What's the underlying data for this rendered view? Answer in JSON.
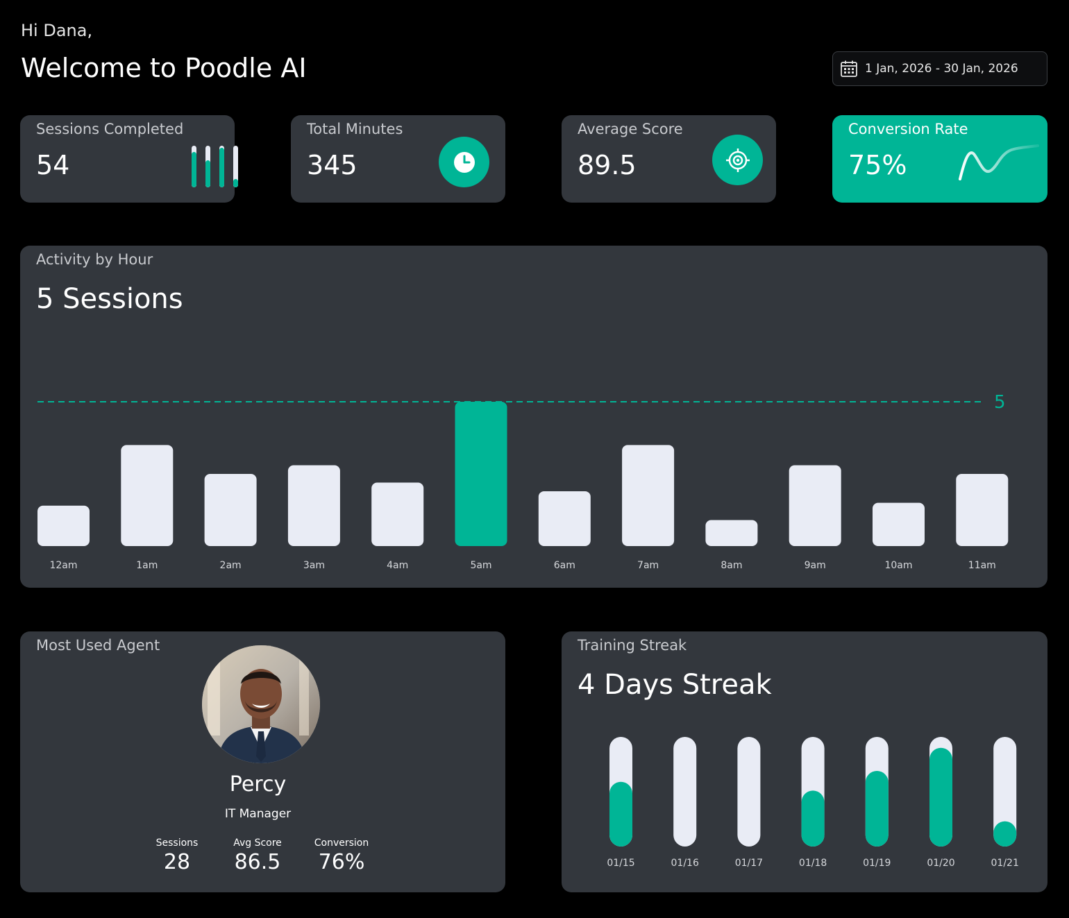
{
  "header": {
    "greeting": "Hi Dana,",
    "welcome": "Welcome to Poodle AI",
    "date_range": "1 Jan, 2026 - 30 Jan, 2026"
  },
  "colors": {
    "accent": "#00b596",
    "card": "#33373d",
    "bar": "#e9ecf5",
    "background": "#000000"
  },
  "stats": {
    "sessions": {
      "label": "Sessions Completed",
      "value": "54",
      "icon": "progress-bars-icon",
      "bar_levels": [
        0.85,
        0.65,
        0.95,
        0.2
      ]
    },
    "minutes": {
      "label": "Total Minutes",
      "value": "345",
      "icon": "clock-icon"
    },
    "score": {
      "label": "Average Score",
      "value": "89.5",
      "icon": "target-icon"
    },
    "conversion": {
      "label": "Conversion Rate",
      "value": "75%",
      "icon": "trend-line-icon"
    }
  },
  "activity": {
    "label": "Activity by Hour",
    "headline": "5 Sessions",
    "reference_value_label": "5"
  },
  "chart_data": [
    {
      "type": "bar",
      "categories": [
        "12am",
        "1am",
        "2am",
        "3am",
        "4am",
        "5am",
        "6am",
        "7am",
        "8am",
        "9am",
        "10am",
        "11am"
      ],
      "values": [
        1.4,
        3.5,
        2.5,
        2.8,
        2.2,
        5,
        1.9,
        3.5,
        0.9,
        2.8,
        1.5,
        2.5
      ],
      "highlight_index": 5,
      "reference_line": 5,
      "ylim": [
        0,
        5
      ]
    },
    {
      "type": "bar",
      "categories": [
        "01/15",
        "01/16",
        "01/17",
        "01/18",
        "01/19",
        "01/20",
        "01/21"
      ],
      "values": [
        0.59,
        0,
        0,
        0.51,
        0.69,
        0.9,
        0.23
      ],
      "ylim": [
        0,
        1
      ]
    }
  ],
  "agent": {
    "label": "Most Used Agent",
    "name": "Percy",
    "role": "IT Manager",
    "stats": [
      {
        "label": "Sessions",
        "value": "28"
      },
      {
        "label": "Avg Score",
        "value": "86.5"
      },
      {
        "label": "Conversion",
        "value": "76%"
      }
    ]
  },
  "streak": {
    "label": "Training Streak",
    "headline": "4 Days Streak"
  }
}
